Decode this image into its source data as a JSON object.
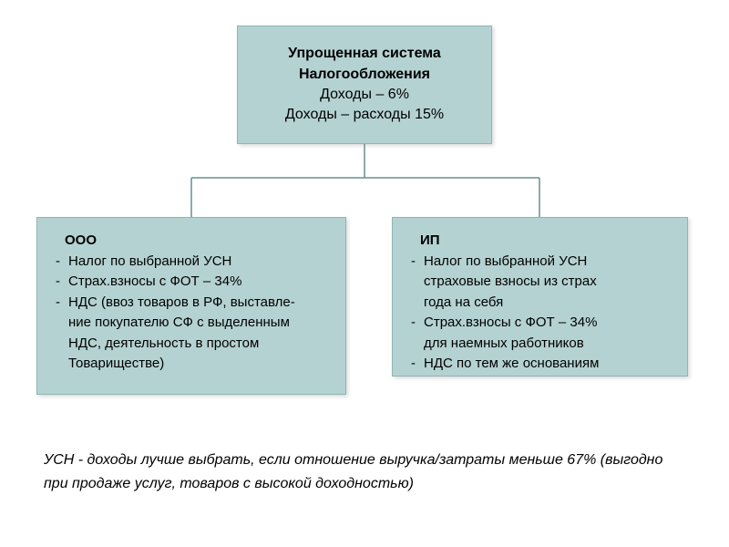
{
  "diagram": {
    "type": "tree",
    "background_color": "#ffffff",
    "node_fill": "#b5d2d2",
    "node_border": "#8fb5b5",
    "connector_color": "#6b8e8e",
    "font_family": "Arial",
    "root": {
      "title_line1": "Упрощенная система",
      "title_line2": "Налогообложения",
      "line3": "Доходы – 6%",
      "line4": "Доходы – расходы 15%",
      "title_fontsize": 16,
      "title_fontweight": "bold"
    },
    "children": [
      {
        "id": "ooo",
        "heading": "ООО",
        "items": [
          "Налог по выбранной УСН",
          "Страх.взносы с ФОТ – 34%",
          "НДС (ввоз товаров в РФ, выставле-\nние покупателю СФ с выделенным\nНДС, деятельность в простом\nТовариществе)"
        ]
      },
      {
        "id": "ip",
        "heading": "ИП",
        "items": [
          "Налог по выбранной УСН\nстраховые взносы из страх\nгода на себя",
          "Страх.взносы с ФОТ – 34%\nдля наемных работников",
          "НДС по тем же основаниям"
        ]
      }
    ],
    "footer": "УСН - доходы лучше выбрать, если отношение выручка/затраты меньше 67% (выгодно при продаже услуг, товаров с высокой доходностью)"
  }
}
